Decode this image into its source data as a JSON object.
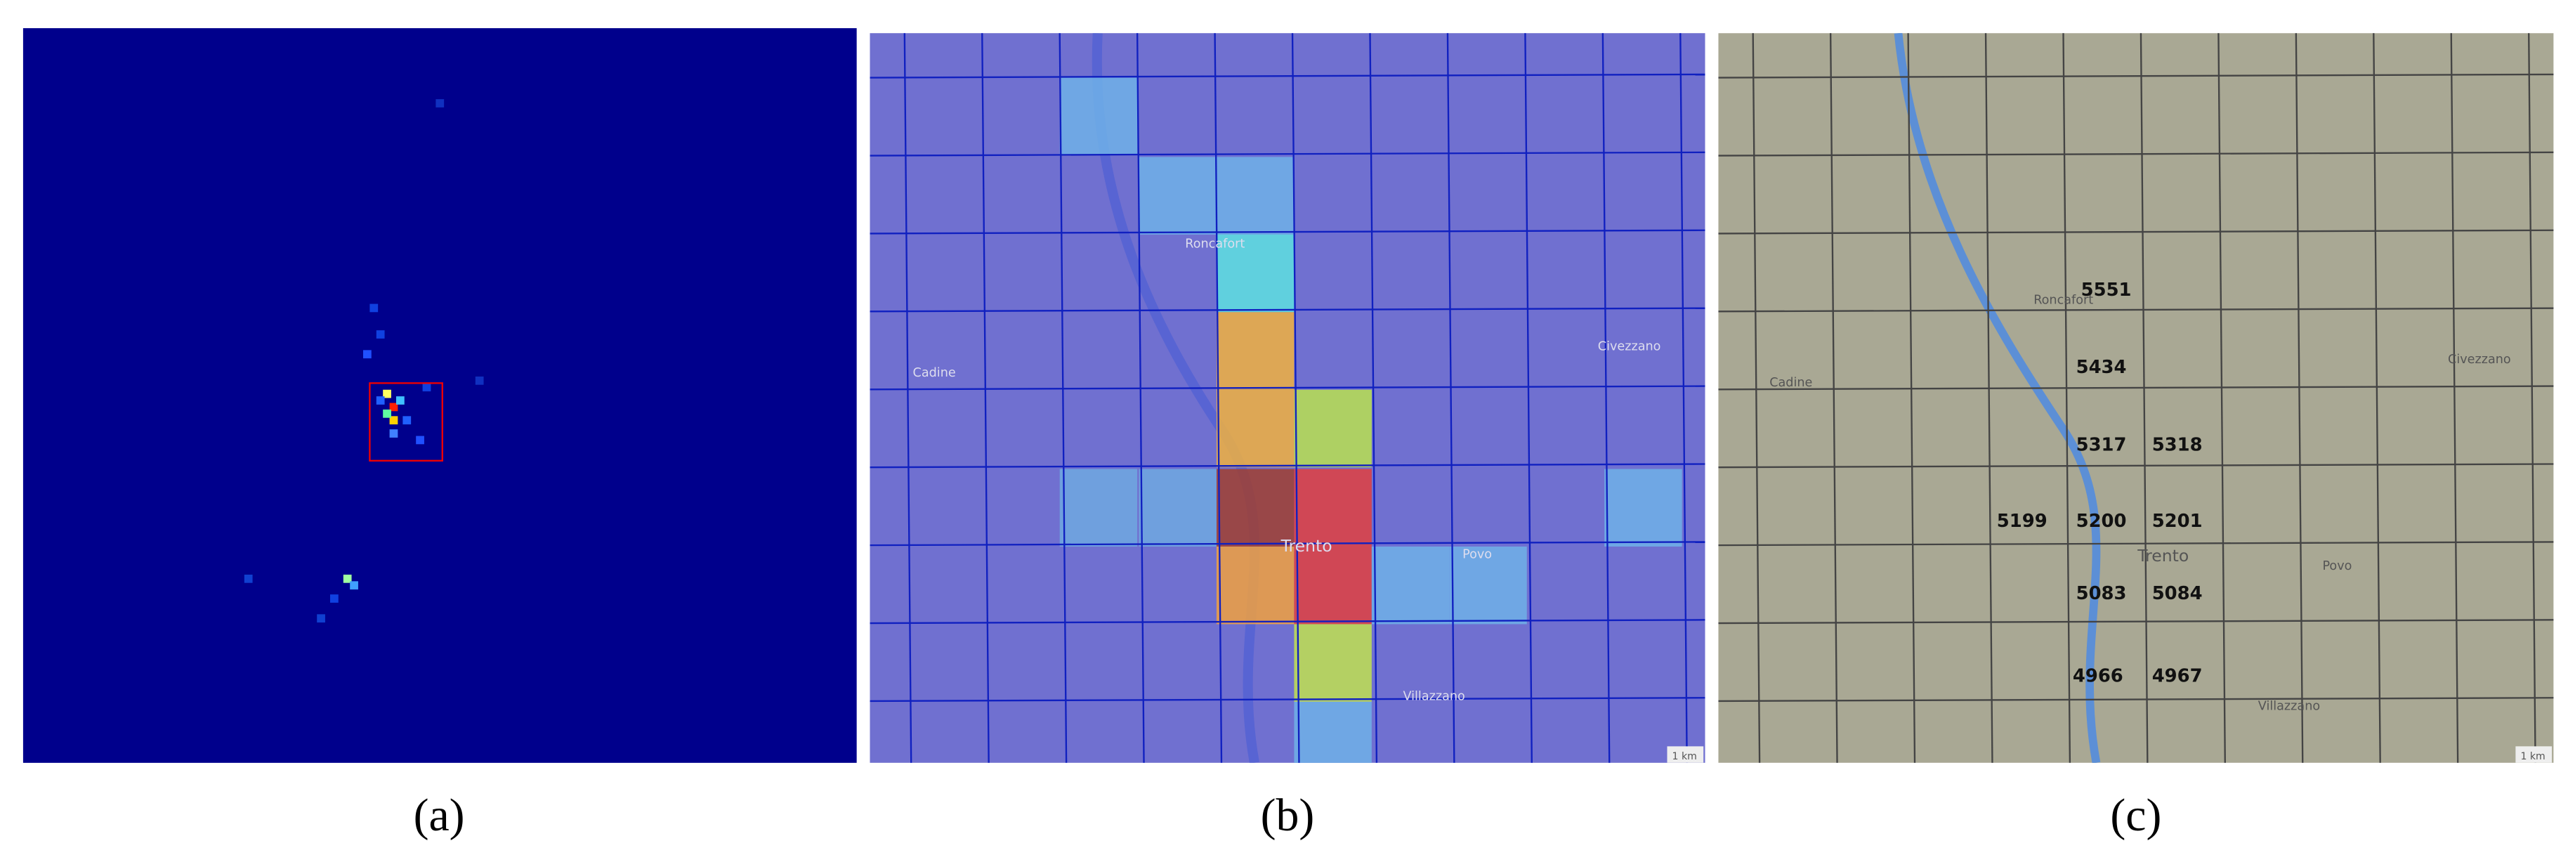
{
  "panels": [
    {
      "caption": "(a)"
    },
    {
      "caption": "(b)",
      "map_labels": [
        "Roncafort",
        "Cadine",
        "Civezzano",
        "Trento",
        "Povo",
        "Villazzano",
        "1 km"
      ]
    },
    {
      "caption": "(c)",
      "map_labels": [
        "Roncafort",
        "Cadine",
        "Civezzano",
        "Trento",
        "Povo",
        "Villazzano",
        "1 km"
      ],
      "cell_ids": [
        "5551",
        "5434",
        "5317",
        "5318",
        "5199",
        "5200",
        "5201",
        "5083",
        "5084",
        "4966",
        "4967"
      ]
    }
  ]
}
